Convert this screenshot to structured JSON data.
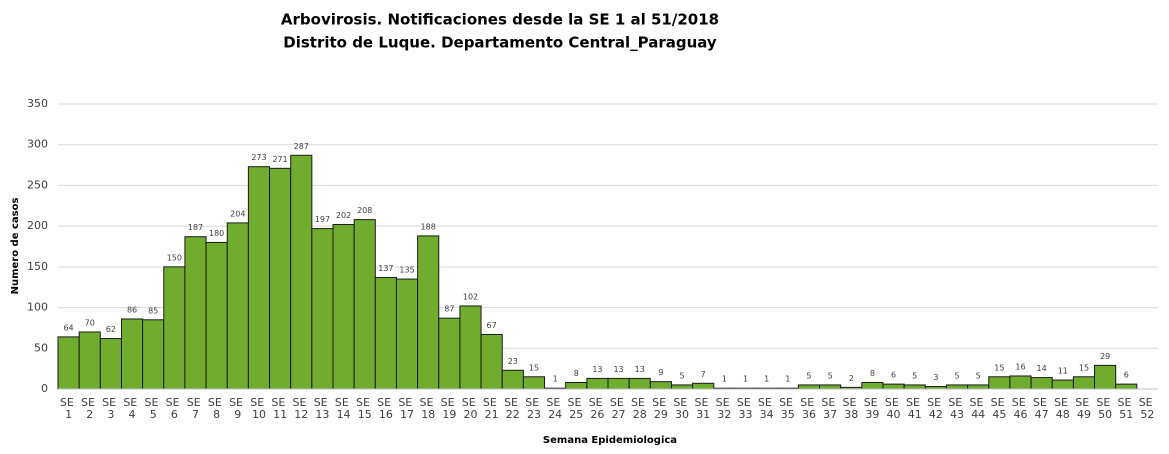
{
  "chart_data": {
    "type": "bar",
    "title": "Arbovirosis. Notificaciones desde la SE 1 al 51/2018",
    "subtitle": "Distrito de Luque. Departamento Central_Paraguay",
    "x_label": "Semana Epidemiologica",
    "y_label": "Numero de casos",
    "categories": [
      "SE 1",
      "SE 2",
      "SE 3",
      "SE 4",
      "SE 5",
      "SE 6",
      "SE 7",
      "SE 8",
      "SE 9",
      "SE 10",
      "SE 11",
      "SE 12",
      "SE 13",
      "SE 14",
      "SE 15",
      "SE 16",
      "SE 17",
      "SE 18",
      "SE 19",
      "SE 20",
      "SE 21",
      "SE 22",
      "SE 23",
      "SE 24",
      "SE 25",
      "SE 26",
      "SE 27",
      "SE 28",
      "SE 29",
      "SE 30",
      "SE 31",
      "SE 32",
      "SE 33",
      "SE 34",
      "SE 35",
      "SE 36",
      "SE 37",
      "SE 38",
      "SE 39",
      "SE 40",
      "SE 41",
      "SE 42",
      "SE 43",
      "SE 44",
      "SE 45",
      "SE 46",
      "SE 47",
      "SE 48",
      "SE 49",
      "SE 50",
      "SE 51",
      "SE 52"
    ],
    "values": [
      64,
      70,
      62,
      86,
      85,
      150,
      187,
      180,
      204,
      273,
      271,
      287,
      197,
      202,
      208,
      137,
      135,
      188,
      87,
      102,
      67,
      23,
      15,
      1,
      8,
      13,
      13,
      13,
      9,
      5,
      7,
      1,
      1,
      1,
      1,
      5,
      5,
      2,
      8,
      6,
      5,
      3,
      5,
      5,
      15,
      16,
      14,
      11,
      15,
      29,
      6,
      null
    ],
    "color": "#70ad2f",
    "ylim": [
      0,
      350
    ],
    "yticks": [
      0,
      50,
      100,
      150,
      200,
      250,
      300,
      350
    ],
    "grid": true
  }
}
